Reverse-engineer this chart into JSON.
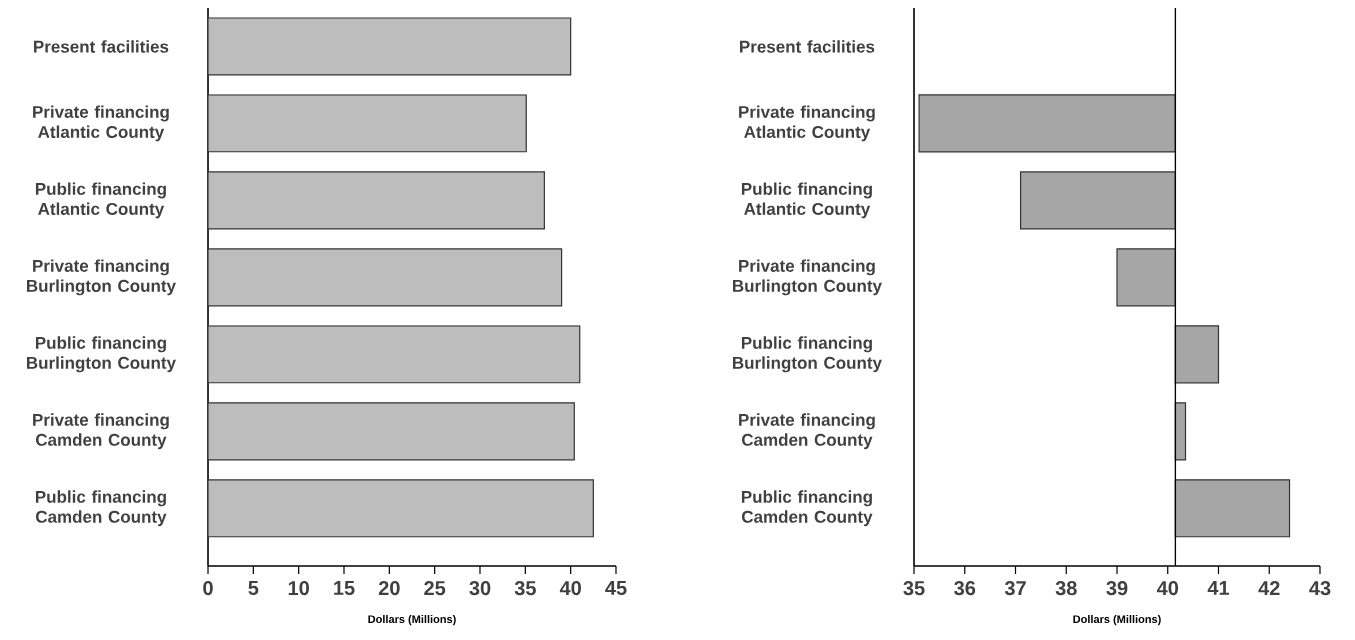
{
  "chart_data": [
    {
      "type": "bar",
      "orientation": "horizontal",
      "categories": [
        "Present facilities",
        "Private financing Atlantic County",
        "Public financing Atlantic County",
        "Private financing Burlington County",
        "Public financing Burlington County",
        "Private financing Camden County",
        "Public financing Camden County"
      ],
      "values": [
        40,
        35.1,
        37.1,
        39,
        41,
        40.4,
        42.5
      ],
      "color": "#bdbdbd",
      "xlim": [
        0,
        45
      ],
      "xticks": [
        0,
        5,
        10,
        15,
        20,
        25,
        30,
        35,
        40,
        45
      ],
      "xlabel": "Dollars (Millions)"
    },
    {
      "type": "bar",
      "orientation": "horizontal",
      "categories": [
        "Present facilities",
        "Private financing Atlantic County",
        "Public financing Atlantic County",
        "Private financing Burlington County",
        "Public financing Burlington County",
        "Private financing Camden County",
        "Public financing Camden County"
      ],
      "base": [
        null,
        40.15,
        40.15,
        40.15,
        40.15,
        40.15,
        40.15
      ],
      "values": [
        null,
        -5.05,
        -3.05,
        -1.15,
        0.85,
        0.2,
        2.25
      ],
      "color": "#a6a6a6",
      "xlim": [
        35,
        43
      ],
      "xticks": [
        35,
        36,
        37,
        38,
        39,
        40,
        41,
        42,
        43
      ],
      "xlabel": "Dollars (Millions)",
      "ref_lines": [
        {
          "axis": "x",
          "value": 40.15
        }
      ]
    }
  ]
}
